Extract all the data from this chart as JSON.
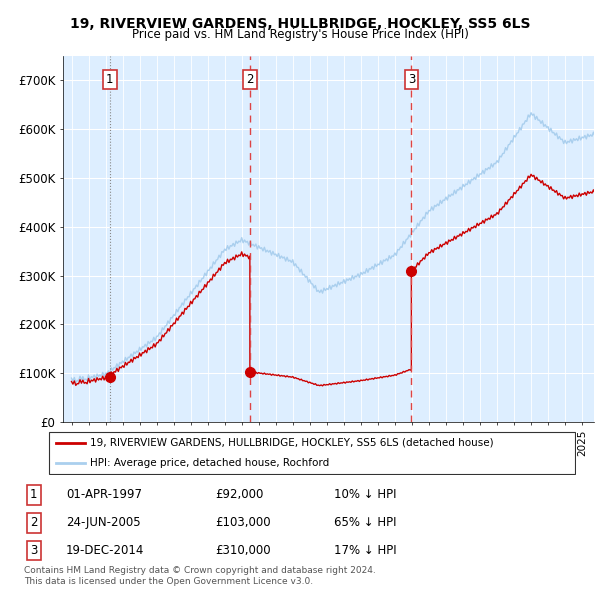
{
  "title": "19, RIVERVIEW GARDENS, HULLBRIDGE, HOCKLEY, SS5 6LS",
  "subtitle": "Price paid vs. HM Land Registry's House Price Index (HPI)",
  "legend_line1": "19, RIVERVIEW GARDENS, HULLBRIDGE, HOCKLEY, SS5 6LS (detached house)",
  "legend_line2": "HPI: Average price, detached house, Rochford",
  "sale_prices": [
    92000,
    103000,
    310000
  ],
  "sale_labels": [
    "1",
    "2",
    "3"
  ],
  "sale_year_floats": [
    1997.25,
    2005.48,
    2014.97
  ],
  "footnote1": "Contains HM Land Registry data © Crown copyright and database right 2024.",
  "footnote2": "This data is licensed under the Open Government Licence v3.0.",
  "table_rows": [
    [
      "1",
      "01-APR-1997",
      "£92,000",
      "10% ↓ HPI"
    ],
    [
      "2",
      "24-JUN-2005",
      "£103,000",
      "65% ↓ HPI"
    ],
    [
      "3",
      "19-DEC-2014",
      "£310,000",
      "17% ↓ HPI"
    ]
  ],
  "hpi_color": "#aacfee",
  "price_color": "#cc0000",
  "sale_dot_color": "#cc0000",
  "vline_color1": "#aaaaaa",
  "vline_color23": "#dd4444",
  "plot_bg_color": "#ddeeff",
  "ylim": [
    0,
    750000
  ],
  "yticks": [
    0,
    100000,
    200000,
    300000,
    400000,
    500000,
    600000,
    700000
  ],
  "ytick_labels": [
    "£0",
    "£100K",
    "£200K",
    "£300K",
    "£400K",
    "£500K",
    "£600K",
    "£700K"
  ],
  "xlim_start": 1994.5,
  "xlim_end": 2025.7
}
